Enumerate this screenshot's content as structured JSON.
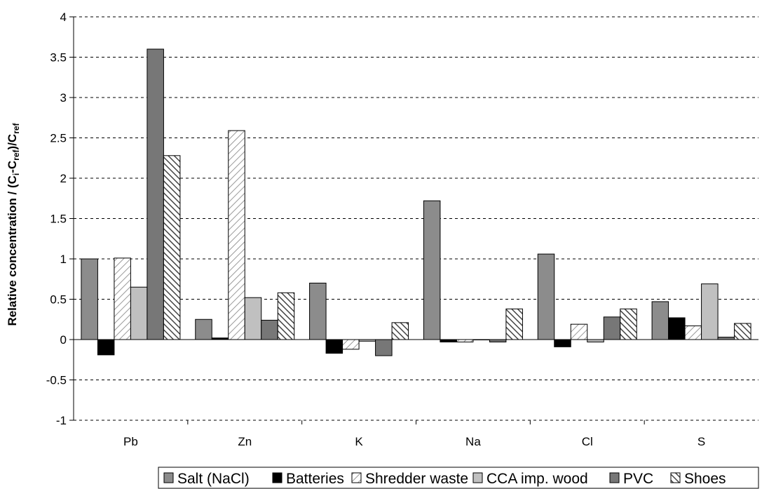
{
  "chart_data": {
    "type": "bar",
    "title": "",
    "xlabel": "",
    "ylabel": {
      "main": "Relative concentration / (C",
      "sub1": "i",
      "mid": "-C",
      "sub2": "ref",
      "mid2": ")/C",
      "sub3": "ref"
    },
    "ylim": [
      -1,
      4
    ],
    "yticks": [
      -1,
      -0.5,
      0,
      0.5,
      1,
      1.5,
      2,
      2.5,
      3,
      3.5,
      4
    ],
    "ytick_labels": [
      "-1",
      "-0.5",
      "0",
      "0.5",
      "1",
      "1.5",
      "2",
      "2.5",
      "3",
      "3.5",
      "4"
    ],
    "grid": "horizontal dashed",
    "legend_position": "bottom",
    "categories": [
      "Pb",
      "Zn",
      "K",
      "Na",
      "Cl",
      "S"
    ],
    "series": [
      {
        "name": "Salt (NaCl)",
        "fill": "#8c8c8c",
        "pattern": "solid",
        "values": [
          1.0,
          0.25,
          0.7,
          1.72,
          1.06,
          0.47
        ]
      },
      {
        "name": "Batteries",
        "fill": "#000000",
        "pattern": "solid",
        "values": [
          -0.19,
          0.02,
          -0.17,
          -0.03,
          -0.09,
          0.27
        ]
      },
      {
        "name": "Shredder waste",
        "fill": "#ffffff",
        "pattern": "diagonal-light",
        "values": [
          1.01,
          2.59,
          -0.12,
          -0.03,
          0.19,
          0.17
        ]
      },
      {
        "name": "CCA imp. wood",
        "fill": "#c0c0c0",
        "pattern": "solid",
        "values": [
          0.65,
          0.52,
          -0.02,
          0.0,
          -0.03,
          0.69
        ]
      },
      {
        "name": "PVC",
        "fill": "#777777",
        "pattern": "solid",
        "values": [
          3.6,
          0.24,
          -0.2,
          -0.03,
          0.28,
          0.03
        ]
      },
      {
        "name": "Shoes",
        "fill": "#ffffff",
        "pattern": "diagonal-dark",
        "values": [
          2.28,
          0.58,
          0.21,
          0.38,
          0.38,
          0.2
        ]
      }
    ]
  }
}
